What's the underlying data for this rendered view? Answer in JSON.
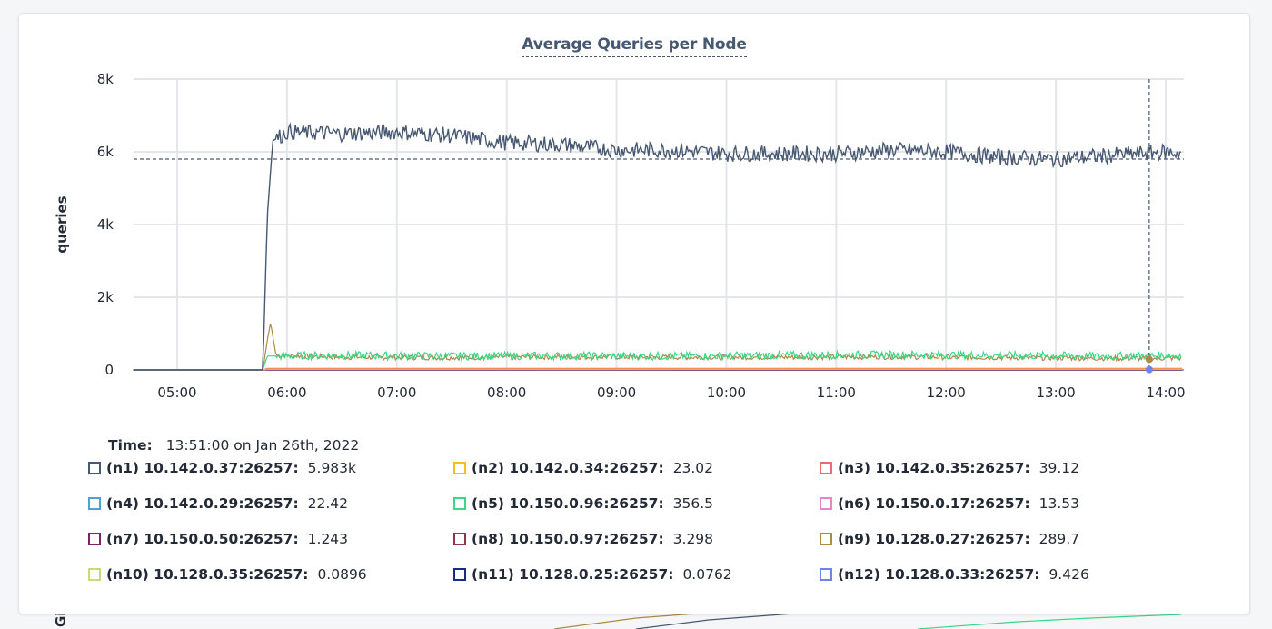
{
  "chart_data": {
    "type": "line",
    "title": "Average Queries per Node",
    "ylabel": "queries",
    "xlabel": "",
    "ylim": [
      0,
      8000
    ],
    "y_ticks": [
      "0",
      "2k",
      "4k",
      "6k",
      "8k"
    ],
    "x_ticks": [
      "05:00",
      "06:00",
      "07:00",
      "08:00",
      "09:00",
      "10:00",
      "11:00",
      "12:00",
      "13:00",
      "14:00"
    ],
    "x_range_hours": [
      4.6,
      14.15
    ],
    "grid": true,
    "hover_time_hours": 13.85,
    "reference_line_value": 5800,
    "series": [
      {
        "name": "(n1) 10.142.0.37:26257:",
        "value": "5.983k",
        "color": "#475872",
        "points": [
          [
            4.6,
            0
          ],
          [
            5.7,
            0
          ],
          [
            5.78,
            0
          ],
          [
            5.82,
            4200
          ],
          [
            5.87,
            6300
          ],
          [
            6.0,
            6550
          ],
          [
            6.5,
            6500
          ],
          [
            7.0,
            6550
          ],
          [
            7.5,
            6450
          ],
          [
            8.0,
            6250
          ],
          [
            8.5,
            6200
          ],
          [
            9.0,
            6050
          ],
          [
            9.5,
            6050
          ],
          [
            10.0,
            5950
          ],
          [
            10.5,
            5950
          ],
          [
            11.0,
            5950
          ],
          [
            11.5,
            6050
          ],
          [
            12.0,
            6000
          ],
          [
            12.5,
            5850
          ],
          [
            13.0,
            5800
          ],
          [
            13.5,
            5900
          ],
          [
            14.0,
            6000
          ],
          [
            14.15,
            5950
          ]
        ]
      },
      {
        "name": "(n2) 10.142.0.34:26257:",
        "value": "23.02",
        "color": "#f6be1d",
        "points": [
          [
            4.6,
            0
          ],
          [
            5.78,
            0
          ],
          [
            5.82,
            20
          ],
          [
            14.15,
            23
          ]
        ]
      },
      {
        "name": "(n3) 10.142.0.35:26257:",
        "value": "39.12",
        "color": "#f06b71",
        "points": [
          [
            4.6,
            0
          ],
          [
            5.78,
            0
          ],
          [
            5.82,
            40
          ],
          [
            14.15,
            39
          ]
        ]
      },
      {
        "name": "(n4) 10.142.0.29:26257:",
        "value": "22.42",
        "color": "#4ea1d3",
        "points": [
          [
            4.6,
            0
          ],
          [
            5.78,
            0
          ],
          [
            5.82,
            20
          ],
          [
            14.15,
            22
          ]
        ]
      },
      {
        "name": "(n5) 10.150.0.96:26257:",
        "value": "356.5",
        "color": "#3bd686",
        "points": [
          [
            4.6,
            0
          ],
          [
            5.78,
            0
          ],
          [
            5.82,
            380
          ],
          [
            6.5,
            400
          ],
          [
            7.5,
            380
          ],
          [
            8.5,
            390
          ],
          [
            9.5,
            380
          ],
          [
            10.5,
            400
          ],
          [
            11.5,
            420
          ],
          [
            12.5,
            400
          ],
          [
            13.5,
            380
          ],
          [
            14.15,
            400
          ]
        ]
      },
      {
        "name": "(n6) 10.150.0.17:26257:",
        "value": "13.53",
        "color": "#e484c9",
        "points": [
          [
            4.6,
            0
          ],
          [
            5.78,
            0
          ],
          [
            5.82,
            12
          ],
          [
            14.15,
            14
          ]
        ]
      },
      {
        "name": "(n7) 10.150.0.50:26257:",
        "value": "1.243",
        "color": "#7a2368",
        "points": [
          [
            4.6,
            0
          ],
          [
            14.15,
            1
          ]
        ]
      },
      {
        "name": "(n8) 10.150.0.97:26257:",
        "value": "3.298",
        "color": "#93344d",
        "points": [
          [
            4.6,
            0
          ],
          [
            14.15,
            3
          ]
        ]
      },
      {
        "name": "(n9) 10.128.0.27:26257:",
        "value": "289.7",
        "color": "#ad8a44",
        "points": [
          [
            4.6,
            0
          ],
          [
            5.78,
            0
          ],
          [
            5.82,
            800
          ],
          [
            5.85,
            1300
          ],
          [
            5.9,
            400
          ],
          [
            6.5,
            350
          ],
          [
            7.5,
            340
          ],
          [
            8.5,
            360
          ],
          [
            9.5,
            350
          ],
          [
            10.5,
            350
          ],
          [
            11.5,
            360
          ],
          [
            12.5,
            340
          ],
          [
            13.5,
            320
          ],
          [
            14.15,
            320
          ]
        ]
      },
      {
        "name": "(n10) 10.128.0.35:26257:",
        "value": "0.0896",
        "color": "#c7dc72",
        "points": [
          [
            4.6,
            0
          ],
          [
            14.15,
            0
          ]
        ]
      },
      {
        "name": "(n11) 10.128.0.25:26257:",
        "value": "0.0762",
        "color": "#1c2d81",
        "points": [
          [
            4.6,
            0
          ],
          [
            14.15,
            0
          ]
        ]
      },
      {
        "name": "(n12) 10.128.0.33:26257:",
        "value": "9.426",
        "color": "#6b86e6",
        "points": [
          [
            4.6,
            0
          ],
          [
            7.2,
            0
          ],
          [
            7.22,
            30
          ],
          [
            7.24,
            0
          ],
          [
            9.4,
            0
          ],
          [
            9.42,
            30
          ],
          [
            9.44,
            0
          ],
          [
            10.5,
            0
          ],
          [
            10.52,
            30
          ],
          [
            10.54,
            0
          ],
          [
            12.6,
            0
          ],
          [
            12.62,
            30
          ],
          [
            12.64,
            0
          ],
          [
            13.85,
            10
          ],
          [
            14.15,
            9
          ]
        ]
      }
    ]
  },
  "legend": {
    "time_label": "Time:",
    "time_value": "13:51:00 on Jan 26th, 2022"
  },
  "background": {
    "next_chart_ylabel_fragment": "Gi"
  }
}
